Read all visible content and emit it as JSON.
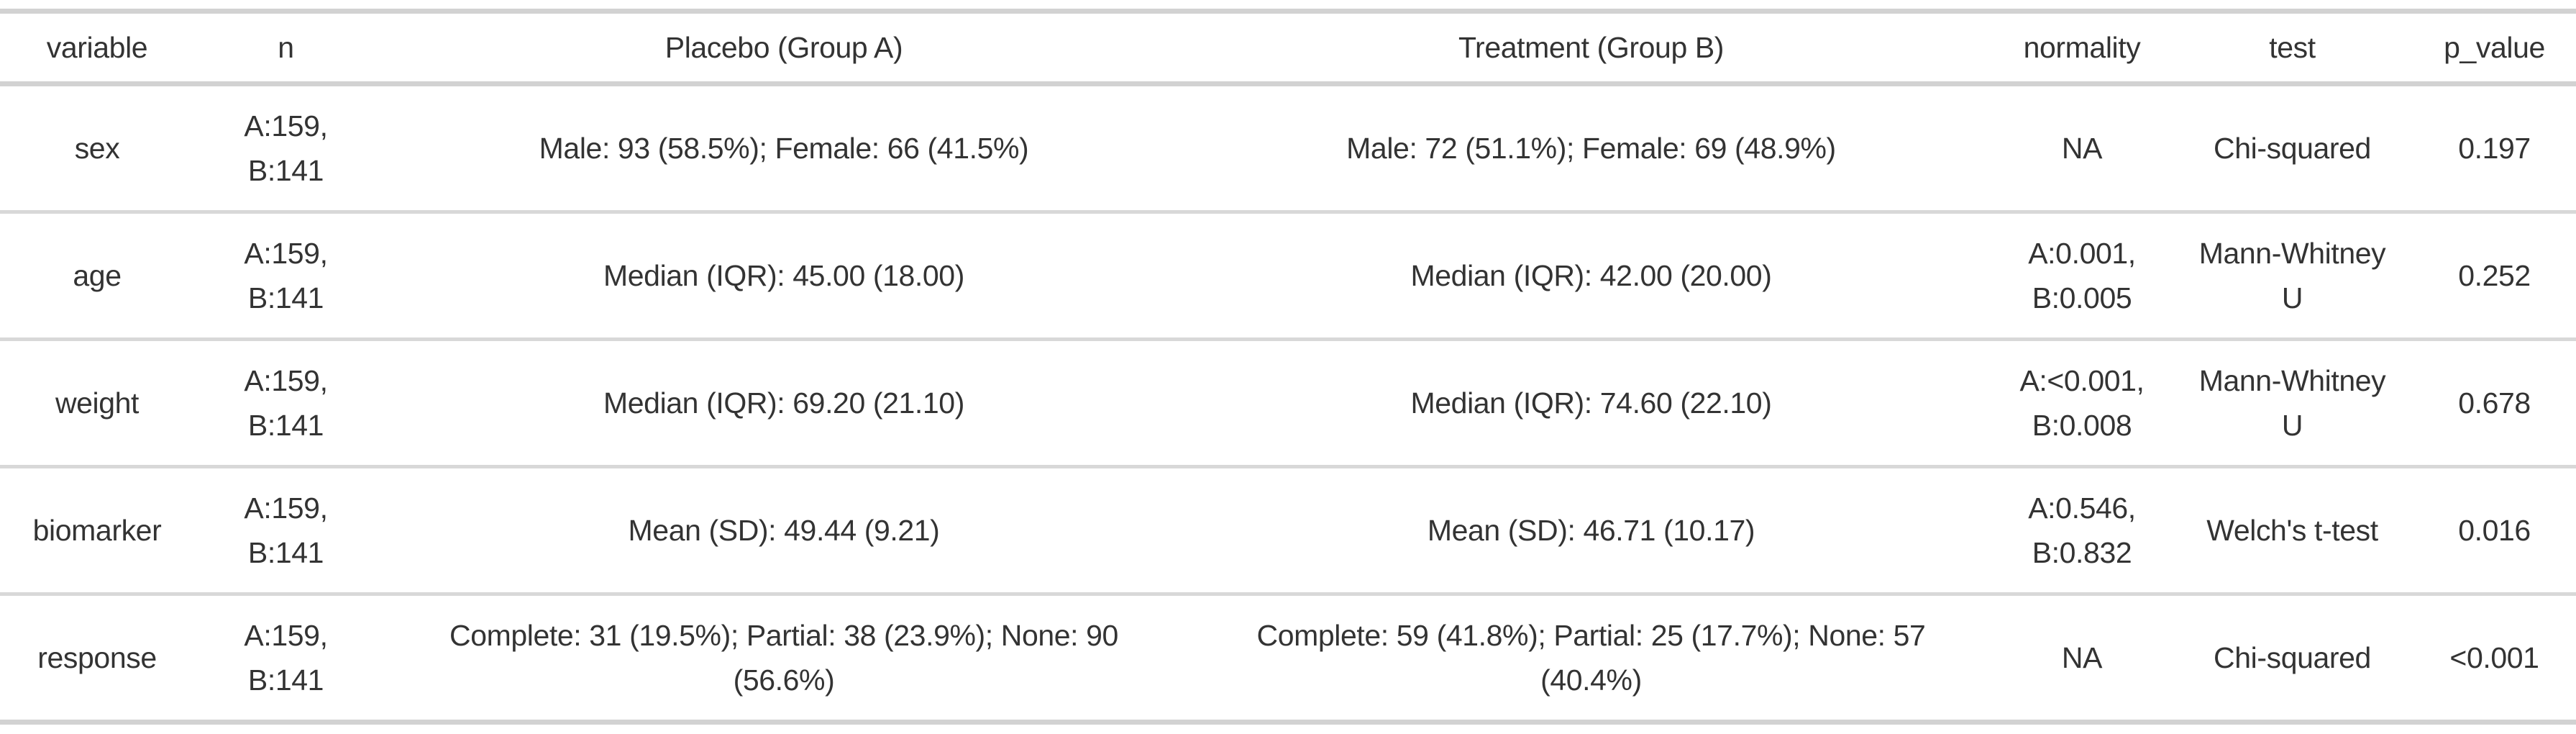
{
  "table": {
    "headers": {
      "variable": "variable",
      "n": "n",
      "placebo": "Placebo (Group A)",
      "treatment": "Treatment (Group B)",
      "normality": "normality",
      "test": "test",
      "p_value": "p_value"
    },
    "rows": [
      {
        "variable": "sex",
        "n": "A:159,\nB:141",
        "placebo": "Male: 93 (58.5%); Female: 66 (41.5%)",
        "treatment": "Male: 72 (51.1%); Female: 69 (48.9%)",
        "normality": "NA",
        "test": "Chi-squared",
        "p_value": "0.197"
      },
      {
        "variable": "age",
        "n": "A:159,\nB:141",
        "placebo": "Median (IQR): 45.00 (18.00)",
        "treatment": "Median (IQR): 42.00 (20.00)",
        "normality": "A:0.001,\nB:0.005",
        "test": "Mann-Whitney\nU",
        "p_value": "0.252"
      },
      {
        "variable": "weight",
        "n": "A:159,\nB:141",
        "placebo": "Median (IQR): 69.20 (21.10)",
        "treatment": "Median (IQR): 74.60 (22.10)",
        "normality": "A:<0.001,\nB:0.008",
        "test": "Mann-Whitney\nU",
        "p_value": "0.678"
      },
      {
        "variable": "biomarker",
        "n": "A:159,\nB:141",
        "placebo": "Mean (SD): 49.44 (9.21)",
        "treatment": "Mean (SD): 46.71 (10.17)",
        "normality": "A:0.546,\nB:0.832",
        "test": "Welch's t-test",
        "p_value": "0.016"
      },
      {
        "variable": "response",
        "n": "A:159,\nB:141",
        "placebo": "Complete: 31 (19.5%); Partial: 38 (23.9%); None: 90\n(56.6%)",
        "treatment": "Complete: 59 (41.8%); Partial: 25 (17.7%); None: 57\n(40.4%)",
        "normality": "NA",
        "test": "Chi-squared",
        "p_value": "<0.001"
      }
    ]
  },
  "chart_data": {
    "type": "table",
    "columns": [
      "variable",
      "n",
      "Placebo (Group A)",
      "Treatment (Group B)",
      "normality",
      "test",
      "p_value"
    ],
    "rows": [
      [
        "sex",
        "A:159, B:141",
        "Male: 93 (58.5%); Female: 66 (41.5%)",
        "Male: 72 (51.1%); Female: 69 (48.9%)",
        "NA",
        "Chi-squared",
        "0.197"
      ],
      [
        "age",
        "A:159, B:141",
        "Median (IQR): 45.00 (18.00)",
        "Median (IQR): 42.00 (20.00)",
        "A:0.001, B:0.005",
        "Mann-Whitney U",
        "0.252"
      ],
      [
        "weight",
        "A:159, B:141",
        "Median (IQR): 69.20 (21.10)",
        "Median (IQR): 74.60 (22.10)",
        "A:<0.001, B:0.008",
        "Mann-Whitney U",
        "0.678"
      ],
      [
        "biomarker",
        "A:159, B:141",
        "Mean (SD): 49.44 (9.21)",
        "Mean (SD): 46.71 (10.17)",
        "A:0.546, B:0.832",
        "Welch's t-test",
        "0.016"
      ],
      [
        "response",
        "A:159, B:141",
        "Complete: 31 (19.5%); Partial: 38 (23.9%); None: 90 (56.6%)",
        "Complete: 59 (41.8%); Partial: 25 (17.7%); None: 57 (40.4%)",
        "NA",
        "Chi-squared",
        "<0.001"
      ]
    ],
    "layout": {
      "grid": "horizontal separators only",
      "text_align": "center",
      "header_position": "top"
    }
  },
  "colors": {
    "background": "#ffffff",
    "text": "#333333",
    "separator_major": "#d2d2d2",
    "separator_row": "#d8d8d8"
  }
}
